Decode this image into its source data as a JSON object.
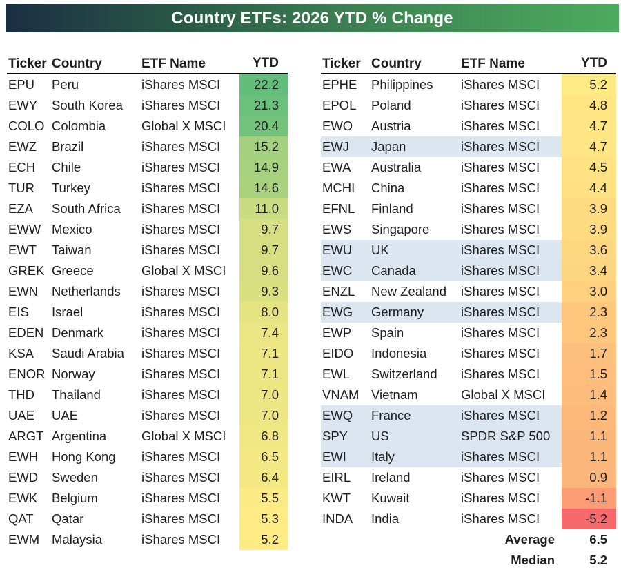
{
  "chart_data": {
    "type": "table",
    "title": "Country ETFs: 2026 YTD % Change",
    "columns": [
      "Ticker",
      "Country",
      "ETF Name",
      "YTD"
    ],
    "left_rows": [
      {
        "ticker": "EPU",
        "country": "Peru",
        "etf_name": "iShares MSCI",
        "ytd": "22.2",
        "highlight": false
      },
      {
        "ticker": "EWY",
        "country": "South Korea",
        "etf_name": "iShares MSCI",
        "ytd": "21.3",
        "highlight": false
      },
      {
        "ticker": "COLO",
        "country": "Colombia",
        "etf_name": "Global X MSCI",
        "ytd": "20.4",
        "highlight": false
      },
      {
        "ticker": "EWZ",
        "country": "Brazil",
        "etf_name": "iShares MSCI",
        "ytd": "15.2",
        "highlight": false
      },
      {
        "ticker": "ECH",
        "country": "Chile",
        "etf_name": "iShares MSCI",
        "ytd": "14.9",
        "highlight": false
      },
      {
        "ticker": "TUR",
        "country": "Turkey",
        "etf_name": "iShares MSCI",
        "ytd": "14.6",
        "highlight": false
      },
      {
        "ticker": "EZA",
        "country": "South Africa",
        "etf_name": "iShares MSCI",
        "ytd": "11.0",
        "highlight": false
      },
      {
        "ticker": "EWW",
        "country": "Mexico",
        "etf_name": "iShares MSCI",
        "ytd": "9.7",
        "highlight": false
      },
      {
        "ticker": "EWT",
        "country": "Taiwan",
        "etf_name": "iShares MSCI",
        "ytd": "9.7",
        "highlight": false
      },
      {
        "ticker": "GREK",
        "country": "Greece",
        "etf_name": "Global X MSCI",
        "ytd": "9.6",
        "highlight": false
      },
      {
        "ticker": "EWN",
        "country": "Netherlands",
        "etf_name": "iShares MSCI",
        "ytd": "9.3",
        "highlight": false
      },
      {
        "ticker": "EIS",
        "country": "Israel",
        "etf_name": "iShares MSCI",
        "ytd": "8.0",
        "highlight": false
      },
      {
        "ticker": "EDEN",
        "country": "Denmark",
        "etf_name": "iShares MSCI",
        "ytd": "7.4",
        "highlight": false
      },
      {
        "ticker": "KSA",
        "country": "Saudi Arabia",
        "etf_name": "iShares MSCI",
        "ytd": "7.1",
        "highlight": false
      },
      {
        "ticker": "ENOR",
        "country": "Norway",
        "etf_name": "iShares MSCI",
        "ytd": "7.1",
        "highlight": false
      },
      {
        "ticker": "THD",
        "country": "Thailand",
        "etf_name": "iShares MSCI",
        "ytd": "7.0",
        "highlight": false
      },
      {
        "ticker": "UAE",
        "country": "UAE",
        "etf_name": "iShares MSCI",
        "ytd": "7.0",
        "highlight": false
      },
      {
        "ticker": "ARGT",
        "country": "Argentina",
        "etf_name": "Global X MSCI",
        "ytd": "6.8",
        "highlight": false
      },
      {
        "ticker": "EWH",
        "country": "Hong Kong",
        "etf_name": "iShares MSCI",
        "ytd": "6.5",
        "highlight": false
      },
      {
        "ticker": "EWD",
        "country": "Sweden",
        "etf_name": "iShares MSCI",
        "ytd": "6.4",
        "highlight": false
      },
      {
        "ticker": "EWK",
        "country": "Belgium",
        "etf_name": "iShares MSCI",
        "ytd": "5.5",
        "highlight": false
      },
      {
        "ticker": "QAT",
        "country": "Qatar",
        "etf_name": "iShares MSCI",
        "ytd": "5.3",
        "highlight": false
      },
      {
        "ticker": "EWM",
        "country": "Malaysia",
        "etf_name": "iShares MSCI",
        "ytd": "5.2",
        "highlight": false
      }
    ],
    "right_rows": [
      {
        "ticker": "EPHE",
        "country": "Philippines",
        "etf_name": "iShares MSCI",
        "ytd": "5.2",
        "highlight": false
      },
      {
        "ticker": "EPOL",
        "country": "Poland",
        "etf_name": "iShares MSCI",
        "ytd": "4.8",
        "highlight": false
      },
      {
        "ticker": "EWO",
        "country": "Austria",
        "etf_name": "iShares MSCI",
        "ytd": "4.7",
        "highlight": false
      },
      {
        "ticker": "EWJ",
        "country": "Japan",
        "etf_name": "iShares MSCI",
        "ytd": "4.7",
        "highlight": true
      },
      {
        "ticker": "EWA",
        "country": "Australia",
        "etf_name": "iShares MSCI",
        "ytd": "4.5",
        "highlight": false
      },
      {
        "ticker": "MCHI",
        "country": "China",
        "etf_name": "iShares MSCI",
        "ytd": "4.4",
        "highlight": false
      },
      {
        "ticker": "EFNL",
        "country": "Finland",
        "etf_name": "iShares MSCI",
        "ytd": "3.9",
        "highlight": false
      },
      {
        "ticker": "EWS",
        "country": "Singapore",
        "etf_name": "iShares MSCI",
        "ytd": "3.9",
        "highlight": false
      },
      {
        "ticker": "EWU",
        "country": "UK",
        "etf_name": "iShares MSCI",
        "ytd": "3.6",
        "highlight": true
      },
      {
        "ticker": "EWC",
        "country": "Canada",
        "etf_name": "iShares MSCI",
        "ytd": "3.4",
        "highlight": true
      },
      {
        "ticker": "ENZL",
        "country": "New Zealand",
        "etf_name": "iShares MSCI",
        "ytd": "3.0",
        "highlight": false
      },
      {
        "ticker": "EWG",
        "country": "Germany",
        "etf_name": "iShares MSCI",
        "ytd": "2.3",
        "highlight": true
      },
      {
        "ticker": "EWP",
        "country": "Spain",
        "etf_name": "iShares MSCI",
        "ytd": "2.3",
        "highlight": false
      },
      {
        "ticker": "EIDO",
        "country": "Indonesia",
        "etf_name": "iShares MSCI",
        "ytd": "1.7",
        "highlight": false
      },
      {
        "ticker": "EWL",
        "country": "Switzerland",
        "etf_name": "iShares MSCI",
        "ytd": "1.5",
        "highlight": false
      },
      {
        "ticker": "VNAM",
        "country": "Vietnam",
        "etf_name": "Global X MSCI",
        "ytd": "1.4",
        "highlight": false
      },
      {
        "ticker": "EWQ",
        "country": "France",
        "etf_name": "iShares MSCI",
        "ytd": "1.2",
        "highlight": true
      },
      {
        "ticker": "SPY",
        "country": "US",
        "etf_name": "SPDR S&P 500",
        "ytd": "1.1",
        "highlight": true
      },
      {
        "ticker": "EWI",
        "country": "Italy",
        "etf_name": "iShares MSCI",
        "ytd": "1.1",
        "highlight": true
      },
      {
        "ticker": "EIRL",
        "country": "Ireland",
        "etf_name": "iShares MSCI",
        "ytd": "0.9",
        "highlight": false
      },
      {
        "ticker": "KWT",
        "country": "Kuwait",
        "etf_name": "iShares MSCI",
        "ytd": "-1.1",
        "highlight": false
      },
      {
        "ticker": "INDA",
        "country": "India",
        "etf_name": "iShares MSCI",
        "ytd": "-5.2",
        "highlight": false
      }
    ],
    "summary": [
      {
        "label": "Average",
        "value": "6.5"
      },
      {
        "label": "Median",
        "value": "5.2"
      }
    ],
    "color_scale": {
      "min": -5.2,
      "mid": 5.2,
      "max": 22.2,
      "min_color": "#F8696B",
      "mid_color": "#FFEB84",
      "max_color": "#63BE7B"
    },
    "row_highlight_color": "#DCE6F1",
    "layout": {
      "grid": "off",
      "legend": "none",
      "tables": 2
    }
  },
  "colors": {
    "title_gradient_left": "#1B2E44",
    "title_gradient_right": "#4CAB5E",
    "header_underline": "#000000",
    "text": "#1F1F1F",
    "title_text": "#FFFFFF"
  }
}
